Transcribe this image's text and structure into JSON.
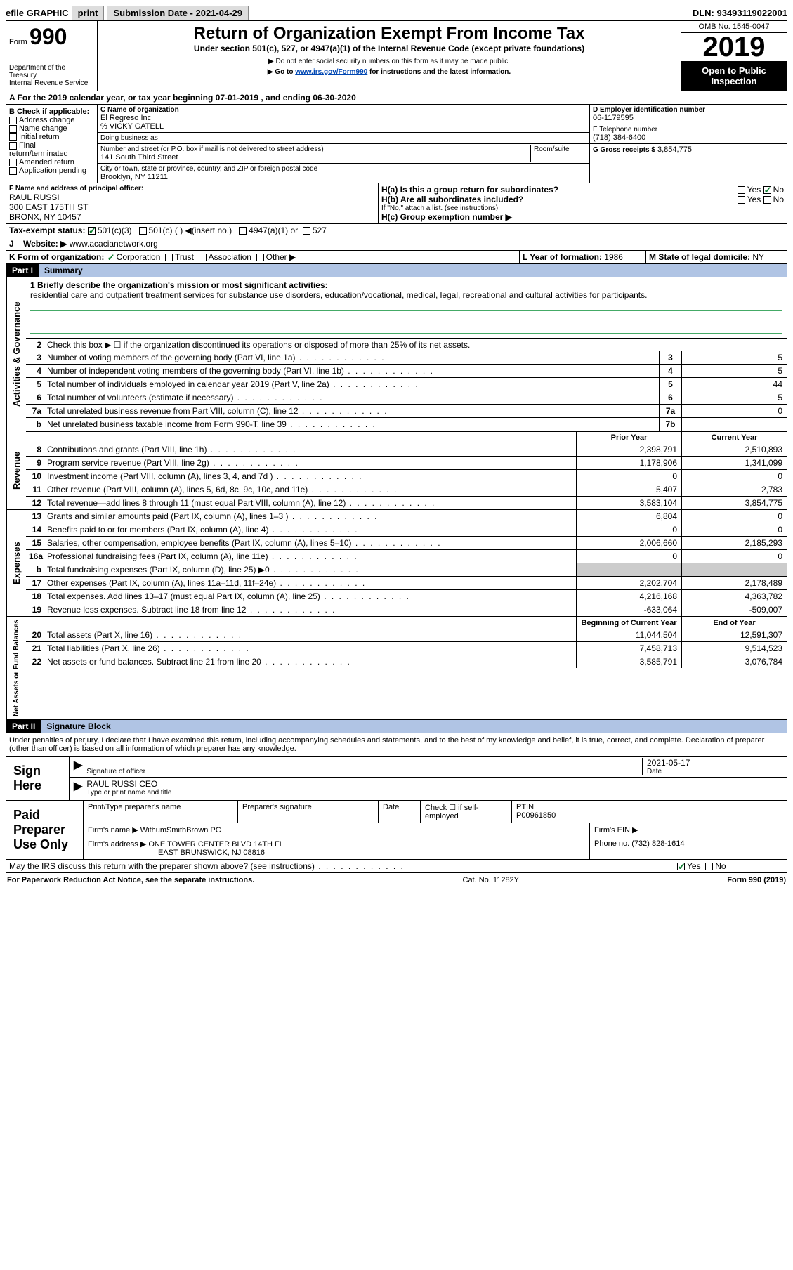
{
  "topbar": {
    "efile_label": "efile GRAPHIC",
    "print_btn": "print",
    "submission_label": "Submission Date - 2021-04-29",
    "dln": "DLN: 93493119022001"
  },
  "header": {
    "form_label": "Form",
    "form_number": "990",
    "dept": "Department of the Treasury\nInternal Revenue Service",
    "title": "Return of Organization Exempt From Income Tax",
    "subtitle": "Under section 501(c), 527, or 4947(a)(1) of the Internal Revenue Code (except private foundations)",
    "note1": "▶ Do not enter social security numbers on this form as it may be made public.",
    "note2_pre": "▶ Go to ",
    "note2_link": "www.irs.gov/Form990",
    "note2_post": " for instructions and the latest information.",
    "omb": "OMB No. 1545-0047",
    "year": "2019",
    "open": "Open to Public Inspection"
  },
  "row_a": "A  For the 2019 calendar year, or tax year beginning 07-01-2019    , and ending 06-30-2020",
  "box_b": {
    "label": "B Check if applicable:",
    "items": [
      "Address change",
      "Name change",
      "Initial return",
      "Final return/terminated",
      "Amended return",
      "Application pending"
    ]
  },
  "box_c": {
    "name_label": "C Name of organization",
    "name": "El Regreso Inc",
    "care_of": "% VICKY GATELL",
    "dba_label": "Doing business as",
    "addr_label": "Number and street (or P.O. box if mail is not delivered to street address)",
    "room_label": "Room/suite",
    "addr": "141 South Third Street",
    "city_label": "City or town, state or province, country, and ZIP or foreign postal code",
    "city": "Brooklyn, NY  11211"
  },
  "box_d": {
    "label": "D Employer identification number",
    "value": "06-1179595"
  },
  "box_e": {
    "label": "E Telephone number",
    "value": "(718) 384-6400"
  },
  "box_g": {
    "label": "G Gross receipts $",
    "value": "3,854,775"
  },
  "box_f": {
    "label": "F  Name and address of principal officer:",
    "name": "RAUL RUSSI",
    "addr1": "300 EAST 175TH ST",
    "addr2": "BRONX, NY  10457"
  },
  "box_h": {
    "ha": "H(a)  Is this a group return for subordinates?",
    "hb": "H(b)  Are all subordinates included?",
    "hb_note": "If \"No,\" attach a list. (see instructions)",
    "hc": "H(c)  Group exemption number ▶",
    "yes": "Yes",
    "no": "No"
  },
  "tax_exempt": {
    "label": "Tax-exempt status:",
    "opt1": "501(c)(3)",
    "opt2": "501(c) (  ) ◀(insert no.)",
    "opt3": "4947(a)(1) or",
    "opt4": "527"
  },
  "row_j": {
    "label": "J",
    "text": "Website: ▶",
    "value": "www.acacianetwork.org"
  },
  "row_k": {
    "label": "K Form of organization:",
    "opts": [
      "Corporation",
      "Trust",
      "Association",
      "Other ▶"
    ]
  },
  "row_l": {
    "label": "L Year of formation:",
    "value": "1986"
  },
  "row_m": {
    "label": "M State of legal domicile:",
    "value": "NY"
  },
  "part1": {
    "header": "Part I",
    "title": "Summary"
  },
  "summary": {
    "mission_label": "1  Briefly describe the organization's mission or most significant activities:",
    "mission": "residential care and outpatient treatment services for substance use disorders, education/vocational, medical, legal, recreational and cultural activities for participants.",
    "line2": "Check this box ▶ ☐  if the organization discontinued its operations or disposed of more than 25% of its net assets.",
    "rows_gov": [
      {
        "n": "3",
        "t": "Number of voting members of the governing body (Part VI, line 1a)",
        "b": "3",
        "v": "5"
      },
      {
        "n": "4",
        "t": "Number of independent voting members of the governing body (Part VI, line 1b)",
        "b": "4",
        "v": "5"
      },
      {
        "n": "5",
        "t": "Total number of individuals employed in calendar year 2019 (Part V, line 2a)",
        "b": "5",
        "v": "44"
      },
      {
        "n": "6",
        "t": "Total number of volunteers (estimate if necessary)",
        "b": "6",
        "v": "5"
      },
      {
        "n": "7a",
        "t": "Total unrelated business revenue from Part VIII, column (C), line 12",
        "b": "7a",
        "v": "0"
      },
      {
        "n": "b",
        "t": "Net unrelated business taxable income from Form 990-T, line 39",
        "b": "7b",
        "v": ""
      }
    ],
    "col_headers": {
      "prior": "Prior Year",
      "current": "Current Year"
    },
    "rows_rev": [
      {
        "n": "8",
        "t": "Contributions and grants (Part VIII, line 1h)",
        "p": "2,398,791",
        "c": "2,510,893"
      },
      {
        "n": "9",
        "t": "Program service revenue (Part VIII, line 2g)",
        "p": "1,178,906",
        "c": "1,341,099"
      },
      {
        "n": "10",
        "t": "Investment income (Part VIII, column (A), lines 3, 4, and 7d )",
        "p": "0",
        "c": "0"
      },
      {
        "n": "11",
        "t": "Other revenue (Part VIII, column (A), lines 5, 6d, 8c, 9c, 10c, and 11e)",
        "p": "5,407",
        "c": "2,783"
      },
      {
        "n": "12",
        "t": "Total revenue—add lines 8 through 11 (must equal Part VIII, column (A), line 12)",
        "p": "3,583,104",
        "c": "3,854,775"
      }
    ],
    "rows_exp": [
      {
        "n": "13",
        "t": "Grants and similar amounts paid (Part IX, column (A), lines 1–3 )",
        "p": "6,804",
        "c": "0"
      },
      {
        "n": "14",
        "t": "Benefits paid to or for members (Part IX, column (A), line 4)",
        "p": "0",
        "c": "0"
      },
      {
        "n": "15",
        "t": "Salaries, other compensation, employee benefits (Part IX, column (A), lines 5–10)",
        "p": "2,006,660",
        "c": "2,185,293"
      },
      {
        "n": "16a",
        "t": "Professional fundraising fees (Part IX, column (A), line 11e)",
        "p": "0",
        "c": "0"
      },
      {
        "n": "b",
        "t": "Total fundraising expenses (Part IX, column (D), line 25) ▶0",
        "p": "",
        "c": "",
        "shade": true
      },
      {
        "n": "17",
        "t": "Other expenses (Part IX, column (A), lines 11a–11d, 11f–24e)",
        "p": "2,202,704",
        "c": "2,178,489"
      },
      {
        "n": "18",
        "t": "Total expenses. Add lines 13–17 (must equal Part IX, column (A), line 25)",
        "p": "4,216,168",
        "c": "4,363,782"
      },
      {
        "n": "19",
        "t": "Revenue less expenses. Subtract line 18 from line 12",
        "p": "-633,064",
        "c": "-509,007"
      }
    ],
    "net_headers": {
      "begin": "Beginning of Current Year",
      "end": "End of Year"
    },
    "rows_net": [
      {
        "n": "20",
        "t": "Total assets (Part X, line 16)",
        "p": "11,044,504",
        "c": "12,591,307"
      },
      {
        "n": "21",
        "t": "Total liabilities (Part X, line 26)",
        "p": "7,458,713",
        "c": "9,514,523"
      },
      {
        "n": "22",
        "t": "Net assets or fund balances. Subtract line 21 from line 20",
        "p": "3,585,791",
        "c": "3,076,784"
      }
    ]
  },
  "side_labels": {
    "gov": "Activities & Governance",
    "rev": "Revenue",
    "exp": "Expenses",
    "net": "Net Assets or Fund Balances"
  },
  "part2": {
    "header": "Part II",
    "title": "Signature Block"
  },
  "sig": {
    "perjury": "Under penalties of perjury, I declare that I have examined this return, including accompanying schedules and statements, and to the best of my knowledge and belief, it is true, correct, and complete. Declaration of preparer (other than officer) is based on all information of which preparer has any knowledge.",
    "sign_here": "Sign Here",
    "sig_officer": "Signature of officer",
    "date_label": "Date",
    "date": "2021-05-17",
    "name_title": "RAUL RUSSI  CEO",
    "type_label": "Type or print name and title"
  },
  "prep": {
    "label": "Paid Preparer Use Only",
    "h1": "Print/Type preparer's name",
    "h2": "Preparer's signature",
    "h3": "Date",
    "h4_pre": "Check ☐ if self-employed",
    "h5": "PTIN",
    "ptin": "P00961850",
    "firm_name_label": "Firm's name    ▶",
    "firm_name": "WithumSmithBrown PC",
    "firm_ein_label": "Firm's EIN ▶",
    "firm_addr_label": "Firm's address ▶",
    "firm_addr1": "ONE TOWER CENTER BLVD 14TH FL",
    "firm_addr2": "EAST BRUNSWICK, NJ  08816",
    "phone_label": "Phone no.",
    "phone": "(732) 828-1614"
  },
  "discuss": {
    "text": "May the IRS discuss this return with the preparer shown above? (see instructions)",
    "yes": "Yes",
    "no": "No"
  },
  "footer": {
    "left": "For Paperwork Reduction Act Notice, see the separate instructions.",
    "mid": "Cat. No. 11282Y",
    "right": "Form 990 (2019)"
  }
}
